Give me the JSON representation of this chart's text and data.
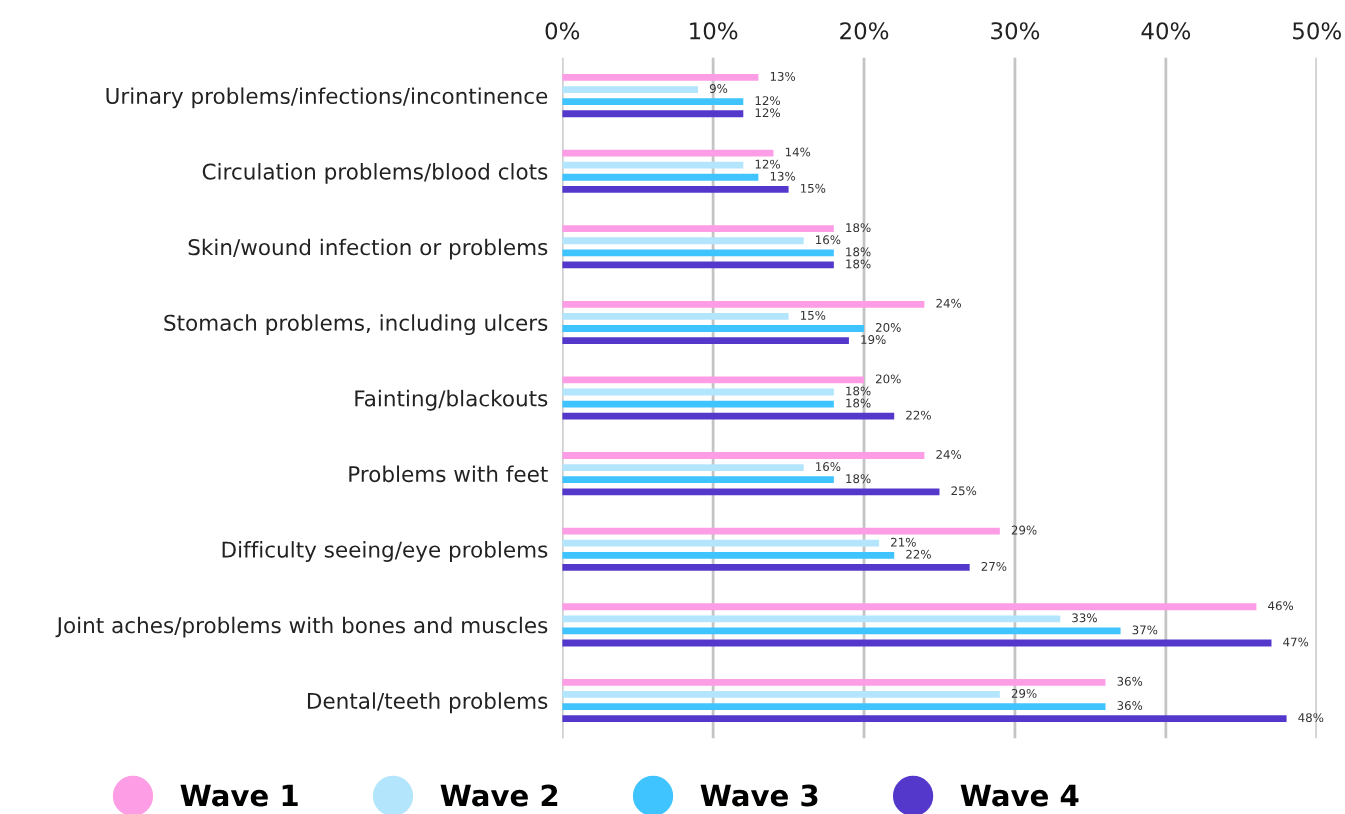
{
  "chart_data": {
    "type": "bar",
    "orientation": "horizontal",
    "categories": [
      "Urinary problems/infections/incontinence",
      "Circulation problems/blood clots",
      "Skin/wound infection or problems",
      "Stomach problems, including ulcers",
      "Fainting/blackouts",
      "Problems with feet",
      "Difficulty seeing/eye problems",
      "Joint aches/problems with bones and muscles",
      "Dental/teeth problems"
    ],
    "series": [
      {
        "name": "Wave 1",
        "color": "#fd9de6",
        "values": [
          13,
          14,
          18,
          24,
          20,
          24,
          29,
          46,
          36
        ],
        "value_labels": [
          "13%",
          "14%",
          "18%",
          "24%",
          "20%",
          "24%",
          "29%",
          "46%",
          "36%"
        ]
      },
      {
        "name": "Wave 2",
        "color": "#b3e5fc",
        "values": [
          9,
          12,
          16,
          15,
          18,
          16,
          21,
          33,
          29
        ],
        "value_labels": [
          "9%",
          "12%",
          "16%",
          "15%",
          "18%",
          "16%",
          "21%",
          "33%",
          "29%"
        ]
      },
      {
        "name": "Wave 3",
        "color": "#40c4ff",
        "values": [
          12,
          13,
          18,
          20,
          18,
          18,
          22,
          37,
          36
        ],
        "value_labels": [
          "12%",
          "13%",
          "18%",
          "20%",
          "18%",
          "18%",
          "22%",
          "37%",
          "36%"
        ]
      },
      {
        "name": "Wave 4",
        "color": "#5438cc",
        "values": [
          12,
          15,
          18,
          19,
          22,
          25,
          27,
          47,
          48
        ],
        "value_labels": [
          "12%",
          "15%",
          "18%",
          "19%",
          "22%",
          "25%",
          "27%",
          "47%",
          "48%"
        ]
      }
    ],
    "xlim": [
      0,
      50
    ],
    "xticks": [
      {
        "value": 0,
        "label": "0%"
      },
      {
        "value": 10,
        "label": "10%"
      },
      {
        "value": 20,
        "label": "20%"
      },
      {
        "value": 30,
        "label": "30%"
      },
      {
        "value": 40,
        "label": "40%"
      },
      {
        "value": 50,
        "label": "50%"
      }
    ],
    "grid": "x",
    "legend": "bottom"
  }
}
